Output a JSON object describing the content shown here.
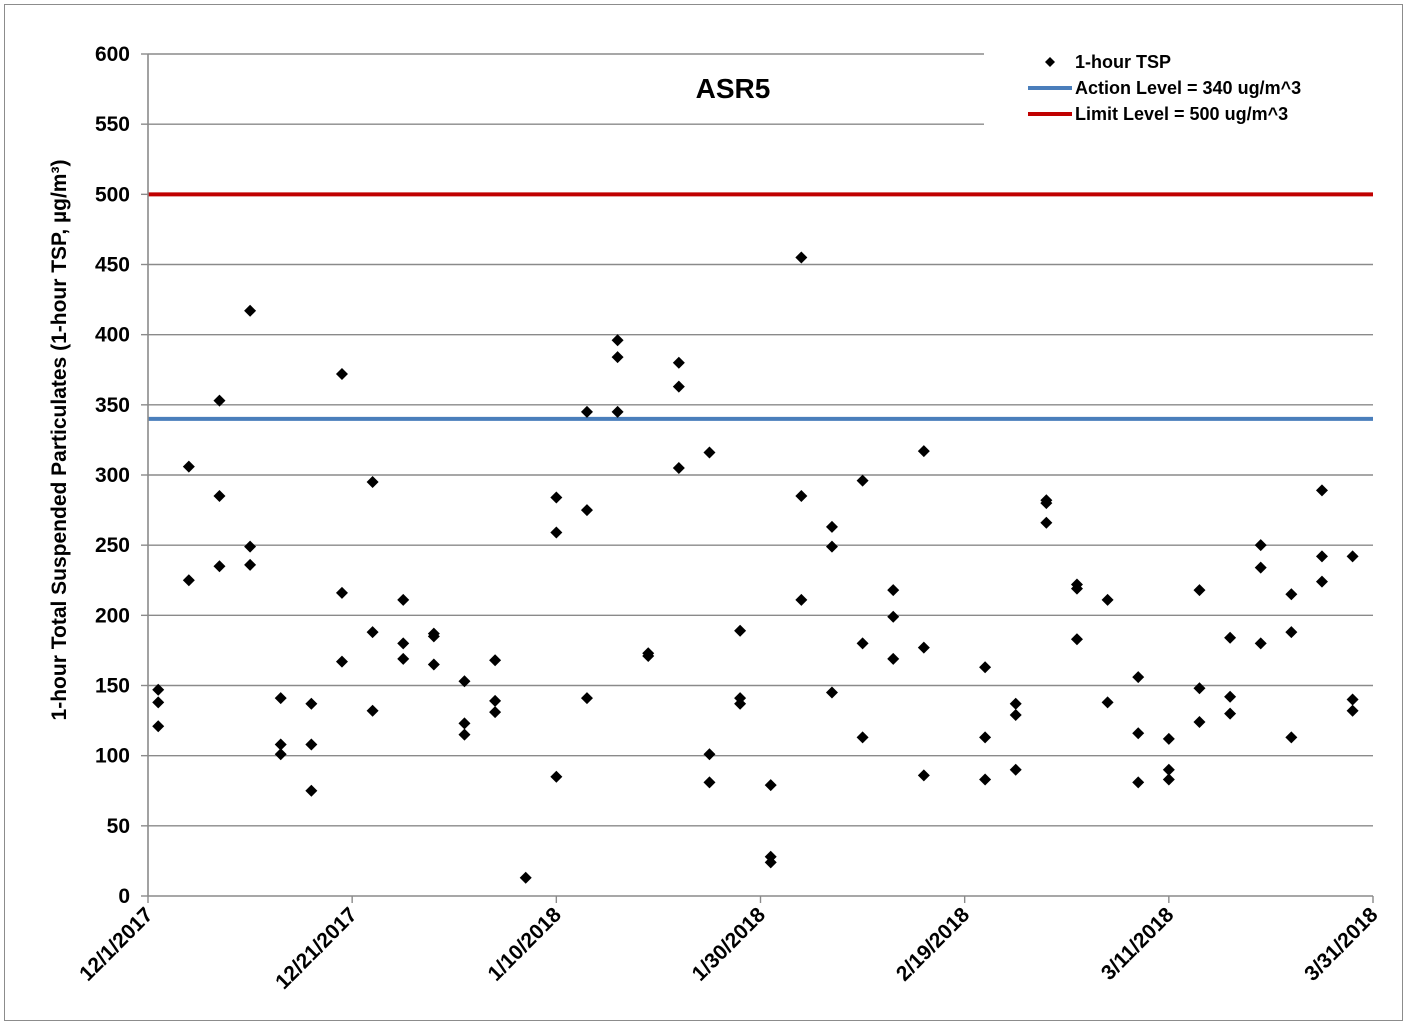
{
  "chart_data": {
    "type": "scatter",
    "title": "ASR5",
    "xlabel": "",
    "ylabel": "1-hour Total Suspended Particulates (1-hour TSP, µg/m³)",
    "xlim": [
      "2017-12-01",
      "2018-03-31"
    ],
    "ylim": [
      0,
      600
    ],
    "x_ticks": [
      "12/1/2017",
      "12/21/2017",
      "1/10/2018",
      "1/30/2018",
      "2/19/2018",
      "3/11/2018",
      "3/31/2018"
    ],
    "y_ticks": [
      "0",
      "50",
      "100",
      "150",
      "200",
      "250",
      "300",
      "350",
      "400",
      "450",
      "500",
      "550",
      "600"
    ],
    "grid": "horizontal",
    "legend_position": "top-right",
    "series": [
      {
        "name": "1-hour TSP",
        "marker": "diamond",
        "color": "#000000",
        "points": [
          [
            "2017-12-02",
            147
          ],
          [
            "2017-12-02",
            138
          ],
          [
            "2017-12-02",
            121
          ],
          [
            "2017-12-05",
            306
          ],
          [
            "2017-12-05",
            225
          ],
          [
            "2017-12-08",
            353
          ],
          [
            "2017-12-08",
            285
          ],
          [
            "2017-12-08",
            235
          ],
          [
            "2017-12-11",
            417
          ],
          [
            "2017-12-11",
            249
          ],
          [
            "2017-12-11",
            236
          ],
          [
            "2017-12-14",
            141
          ],
          [
            "2017-12-14",
            108
          ],
          [
            "2017-12-14",
            101
          ],
          [
            "2017-12-17",
            137
          ],
          [
            "2017-12-17",
            108
          ],
          [
            "2017-12-17",
            75
          ],
          [
            "2017-12-20",
            372
          ],
          [
            "2017-12-20",
            216
          ],
          [
            "2017-12-20",
            167
          ],
          [
            "2017-12-23",
            295
          ],
          [
            "2017-12-23",
            188
          ],
          [
            "2017-12-23",
            132
          ],
          [
            "2017-12-26",
            211
          ],
          [
            "2017-12-26",
            180
          ],
          [
            "2017-12-26",
            169
          ],
          [
            "2017-12-29",
            187
          ],
          [
            "2017-12-29",
            185
          ],
          [
            "2017-12-29",
            165
          ],
          [
            "2018-01-01",
            153
          ],
          [
            "2018-01-01",
            123
          ],
          [
            "2018-01-01",
            115
          ],
          [
            "2018-01-04",
            168
          ],
          [
            "2018-01-04",
            139
          ],
          [
            "2018-01-04",
            131
          ],
          [
            "2018-01-07",
            13
          ],
          [
            "2018-01-10",
            284
          ],
          [
            "2018-01-10",
            259
          ],
          [
            "2018-01-10",
            85
          ],
          [
            "2018-01-13",
            345
          ],
          [
            "2018-01-13",
            275
          ],
          [
            "2018-01-13",
            141
          ],
          [
            "2018-01-16",
            396
          ],
          [
            "2018-01-16",
            384
          ],
          [
            "2018-01-16",
            345
          ],
          [
            "2018-01-19",
            173
          ],
          [
            "2018-01-19",
            171
          ],
          [
            "2018-01-22",
            380
          ],
          [
            "2018-01-22",
            363
          ],
          [
            "2018-01-22",
            305
          ],
          [
            "2018-01-25",
            316
          ],
          [
            "2018-01-25",
            101
          ],
          [
            "2018-01-25",
            81
          ],
          [
            "2018-01-28",
            189
          ],
          [
            "2018-01-28",
            141
          ],
          [
            "2018-01-28",
            137
          ],
          [
            "2018-01-31",
            79
          ],
          [
            "2018-01-31",
            28
          ],
          [
            "2018-01-31",
            24
          ],
          [
            "2018-02-03",
            455
          ],
          [
            "2018-02-03",
            285
          ],
          [
            "2018-02-03",
            211
          ],
          [
            "2018-02-06",
            263
          ],
          [
            "2018-02-06",
            249
          ],
          [
            "2018-02-06",
            145
          ],
          [
            "2018-02-09",
            296
          ],
          [
            "2018-02-09",
            180
          ],
          [
            "2018-02-09",
            113
          ],
          [
            "2018-02-12",
            218
          ],
          [
            "2018-02-12",
            199
          ],
          [
            "2018-02-12",
            169
          ],
          [
            "2018-02-15",
            317
          ],
          [
            "2018-02-15",
            177
          ],
          [
            "2018-02-15",
            86
          ],
          [
            "2018-02-21",
            163
          ],
          [
            "2018-02-21",
            113
          ],
          [
            "2018-02-21",
            83
          ],
          [
            "2018-02-24",
            137
          ],
          [
            "2018-02-24",
            129
          ],
          [
            "2018-02-24",
            90
          ],
          [
            "2018-02-27",
            282
          ],
          [
            "2018-02-27",
            280
          ],
          [
            "2018-02-27",
            266
          ],
          [
            "2018-03-02",
            222
          ],
          [
            "2018-03-02",
            219
          ],
          [
            "2018-03-02",
            183
          ],
          [
            "2018-03-05",
            211
          ],
          [
            "2018-03-05",
            138
          ],
          [
            "2018-03-08",
            156
          ],
          [
            "2018-03-08",
            116
          ],
          [
            "2018-03-08",
            81
          ],
          [
            "2018-03-11",
            112
          ],
          [
            "2018-03-11",
            90
          ],
          [
            "2018-03-11",
            83
          ],
          [
            "2018-03-14",
            218
          ],
          [
            "2018-03-14",
            148
          ],
          [
            "2018-03-14",
            124
          ],
          [
            "2018-03-17",
            184
          ],
          [
            "2018-03-17",
            142
          ],
          [
            "2018-03-17",
            130
          ],
          [
            "2018-03-20",
            250
          ],
          [
            "2018-03-20",
            234
          ],
          [
            "2018-03-20",
            180
          ],
          [
            "2018-03-23",
            215
          ],
          [
            "2018-03-23",
            188
          ],
          [
            "2018-03-23",
            113
          ],
          [
            "2018-03-26",
            289
          ],
          [
            "2018-03-26",
            242
          ],
          [
            "2018-03-26",
            224
          ],
          [
            "2018-03-29",
            242
          ],
          [
            "2018-03-29",
            140
          ],
          [
            "2018-03-29",
            132
          ]
        ]
      },
      {
        "name": "Action Level = 340 ug/m^3",
        "type": "hline",
        "value": 340,
        "color": "#4a7ebb"
      },
      {
        "name": "Limit Level = 500 ug/m^3",
        "type": "hline",
        "value": 500,
        "color": "#c00000"
      }
    ]
  }
}
